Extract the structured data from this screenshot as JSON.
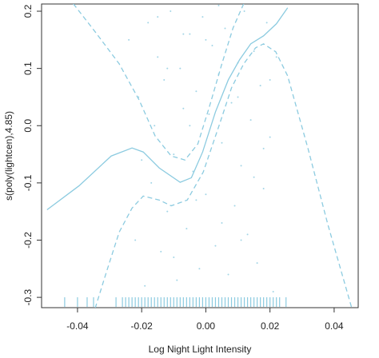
{
  "chart_data": {
    "type": "line",
    "x_label": "Log Night Light Intensity",
    "y_label": "s(poly(lightcen),4.85)",
    "xlim": [
      -0.0512,
      0.0475
    ],
    "ylim": [
      -0.318,
      0.2126
    ],
    "xticks": [
      -0.04,
      -0.02,
      {
        "value": 0,
        "label": "0.00"
      },
      0.02,
      0.04
    ],
    "yticks": [
      0.2,
      0.1,
      {
        "value": 0,
        "label": "0.0"
      },
      -0.1,
      -0.2,
      -0.3
    ],
    "color": "#8ccbe0",
    "series": [
      {
        "style": "solid",
        "x": [
          -0.0495,
          -0.0395,
          -0.0295,
          -0.023,
          -0.0195,
          -0.0145,
          -0.008,
          -0.0045,
          -0.001,
          0.003,
          0.007,
          0.0105,
          0.014,
          0.018,
          0.022,
          0.0255
        ],
        "values": [
          -0.147,
          -0.105,
          -0.053,
          -0.039,
          -0.046,
          -0.074,
          -0.099,
          -0.091,
          -0.046,
          0.024,
          0.08,
          0.115,
          0.143,
          0.157,
          0.178,
          0.206
        ]
      },
      {
        "style": "dashed",
        "x": [
          -0.0413,
          -0.0345,
          -0.027,
          -0.0208,
          -0.0158,
          -0.0108,
          -0.0065,
          -0.0025,
          0.001,
          0.005,
          0.0085,
          0.0118
        ],
        "values": [
          0.213,
          0.164,
          0.108,
          0.045,
          -0.018,
          -0.053,
          -0.06,
          -0.032,
          0.031,
          0.108,
          0.171,
          0.213
        ]
      },
      {
        "style": "dashed",
        "x": [
          -0.0345,
          -0.031,
          -0.027,
          -0.023,
          -0.0195,
          -0.0145,
          -0.0108,
          -0.0058,
          -0.0008,
          0.0043,
          0.008,
          0.0118,
          0.0155,
          0.018,
          0.0218,
          0.0255,
          0.0318,
          0.038,
          0.0455
        ],
        "values": [
          -0.319,
          -0.256,
          -0.186,
          -0.144,
          -0.123,
          -0.13,
          -0.14,
          -0.13,
          -0.081,
          0.003,
          0.066,
          0.108,
          0.136,
          0.143,
          0.129,
          0.087,
          -0.039,
          -0.172,
          -0.319
        ]
      },
      {
        "type": "scatter",
        "x": [
          -0.024,
          -0.022,
          -0.021,
          -0.019,
          -0.018,
          -0.017,
          -0.016,
          -0.015,
          -0.014,
          -0.013,
          -0.012,
          -0.011,
          -0.01,
          -0.009,
          -0.008,
          -0.007,
          -0.006,
          -0.005,
          -0.004,
          -0.003,
          -0.002,
          -0.001,
          0.0,
          0.001,
          0.002,
          0.003,
          0.004,
          0.005,
          0.006,
          0.007,
          0.008,
          0.009,
          0.01,
          0.011,
          0.012,
          0.013,
          0.014,
          0.015,
          0.016,
          0.017,
          0.018,
          0.019,
          0.02,
          0.021,
          0.022,
          -0.02,
          -0.015,
          -0.01,
          -0.005,
          0.0,
          0.005,
          0.01,
          0.015,
          0.02,
          -0.012,
          -0.003,
          0.004,
          0.011,
          0.018,
          -0.007
        ],
        "values": [
          0.15,
          -0.2,
          0.05,
          -0.28,
          0.18,
          -0.1,
          0.0,
          0.12,
          -0.22,
          0.08,
          -0.15,
          0.2,
          -0.05,
          -0.27,
          0.1,
          0.03,
          -0.18,
          0.16,
          -0.08,
          0.06,
          -0.25,
          0.19,
          -0.12,
          0.02,
          0.14,
          -0.21,
          0.09,
          -0.03,
          0.17,
          -0.26,
          0.04,
          -0.14,
          0.11,
          -0.07,
          0.2,
          -0.19,
          0.01,
          0.13,
          -0.24,
          0.07,
          -0.11,
          0.18,
          -0.02,
          -0.29,
          0.12,
          -0.06,
          0.19,
          -0.23,
          0.0,
          0.15,
          -0.17,
          0.05,
          -0.09,
          0.08,
          0.1,
          -0.13,
          0.21,
          -0.2,
          -0.04,
          0.16
        ]
      }
    ],
    "rug": [
      -0.044,
      -0.04,
      -0.037,
      -0.035,
      -0.028,
      -0.026,
      -0.025,
      -0.024,
      -0.023,
      -0.022,
      -0.021,
      -0.02,
      -0.019,
      -0.018,
      -0.017,
      -0.016,
      -0.015,
      -0.014,
      -0.013,
      -0.012,
      -0.011,
      -0.01,
      -0.009,
      -0.008,
      -0.007,
      -0.006,
      -0.005,
      -0.004,
      -0.003,
      -0.002,
      -0.001,
      0.0,
      0.001,
      0.002,
      0.003,
      0.004,
      0.005,
      0.006,
      0.007,
      0.008,
      0.009,
      0.01,
      0.011,
      0.012,
      0.013,
      0.014,
      0.015,
      0.016,
      0.017,
      0.018,
      0.019,
      0.02,
      0.021,
      0.022,
      0.023,
      0.025
    ]
  }
}
